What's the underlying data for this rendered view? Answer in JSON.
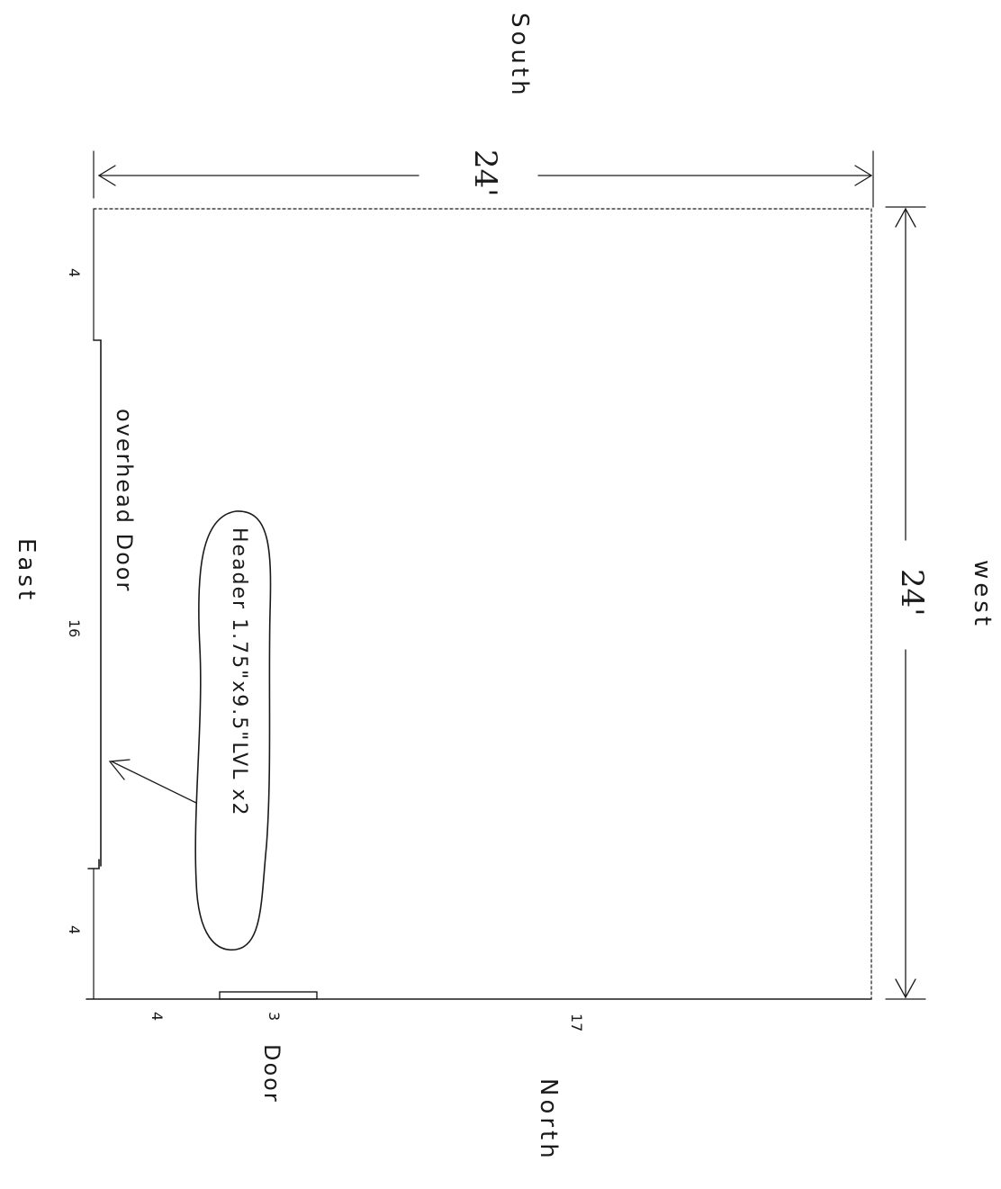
{
  "compass": {
    "top": "South",
    "bottom": "North",
    "left": "East",
    "right": "west"
  },
  "dimensions": {
    "south_side": "24'",
    "west_side": "24'"
  },
  "east_wall_segments": {
    "a": "4",
    "b": "16",
    "c": "4"
  },
  "north_wall_segments": {
    "a": "4",
    "b": "3",
    "c": "17"
  },
  "labels": {
    "overhead_door": "overhead Door",
    "header_note": "Header 1.75\"x9.5\"LVL x2",
    "door": "Door"
  },
  "colors": {
    "ink": "#1a1a1a",
    "paper": "#ffffff"
  }
}
